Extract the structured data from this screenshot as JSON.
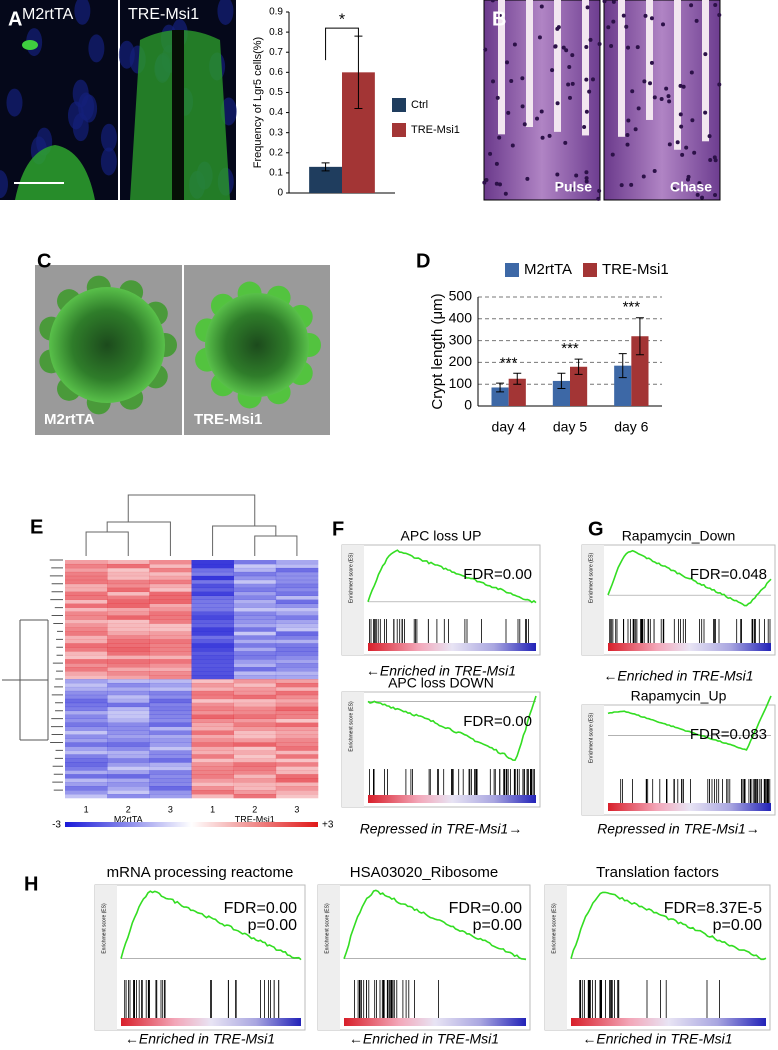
{
  "panel_labels": [
    "A",
    "B",
    "C",
    "D",
    "E",
    "F",
    "G",
    "H"
  ],
  "panel_a": {
    "images": [
      "M2rtTA",
      "TRE-Msi1"
    ]
  },
  "chart_data": [
    {
      "type": "bar",
      "ylabel": "Frequency of Lgr5 cells(%)",
      "categories": [
        null
      ],
      "series": [
        {
          "name": "Ctrl",
          "color": "#1f3d5e",
          "values": [
            0.13
          ],
          "errors": [
            0.02
          ]
        },
        {
          "name": "TRE-Msi1",
          "color": "#a33535",
          "values": [
            0.6
          ],
          "errors": [
            0.18
          ]
        }
      ],
      "ylim": [
        0,
        0.9
      ],
      "yticks": [
        0,
        0.1,
        0.2,
        0.3,
        0.4,
        0.5,
        0.6,
        0.7,
        0.8,
        0.9
      ],
      "grid": false,
      "annotations": [
        "*"
      ]
    },
    {
      "type": "bar",
      "ylabel": "Crypt length (μm)",
      "categories": [
        "day 4",
        "day 5",
        "day 6"
      ],
      "series": [
        {
          "name": "M2rtTA",
          "color": "#3d68a6",
          "values": [
            85,
            115,
            185
          ],
          "errors": [
            20,
            35,
            55
          ]
        },
        {
          "name": "TRE-Msi1",
          "color": "#a33535",
          "values": [
            125,
            180,
            320
          ],
          "errors": [
            25,
            35,
            85
          ]
        }
      ],
      "ylim": [
        0,
        500
      ],
      "yticks": [
        0,
        100,
        200,
        300,
        400,
        500
      ],
      "grid": true,
      "annotations": [
        "***",
        "***",
        "***"
      ]
    }
  ],
  "panel_b": {
    "labels": [
      "Pulse",
      "Chase"
    ]
  },
  "panel_c": {
    "labels": [
      "M2rtTA",
      "TRE-Msi1"
    ]
  },
  "panel_e": {
    "groups": [
      "M2rtTA",
      "TRE-Msi1"
    ],
    "columns": [
      "1",
      "2",
      "3",
      "1",
      "2",
      "3"
    ],
    "scale": [
      "-3",
      "+3"
    ]
  },
  "gsea_axis": "Enrichment score (ES)",
  "panel_f": [
    {
      "title": "APC loss UP",
      "stats": [
        "FDR=0.00"
      ],
      "caption": "←Enriched in TRE-Msi1"
    },
    {
      "title": "APC loss DOWN",
      "stats": [
        "FDR=0.00"
      ],
      "caption": "Repressed in TRE-Msi1→"
    }
  ],
  "panel_g": [
    {
      "title": "Rapamycin_Down",
      "stats": [
        "FDR=0.048"
      ],
      "caption": "←Enriched in TRE-Msi1"
    },
    {
      "title": "Rapamycin_Up",
      "stats": [
        "FDR=0.083"
      ],
      "caption": "Repressed in TRE-Msi1→"
    }
  ],
  "panel_h": [
    {
      "title": "mRNA processing reactome",
      "stats": [
        "FDR=0.00",
        "p=0.00"
      ],
      "caption": "←Enriched in TRE-Msi1"
    },
    {
      "title": "HSA03020_Ribosome",
      "stats": [
        "FDR=0.00",
        "p=0.00"
      ],
      "caption": "←Enriched in TRE-Msi1"
    },
    {
      "title": "Translation factors",
      "stats": [
        "FDR=8.37E-5",
        "p=0.00"
      ],
      "caption": "←Enriched in TRE-Msi1"
    }
  ]
}
